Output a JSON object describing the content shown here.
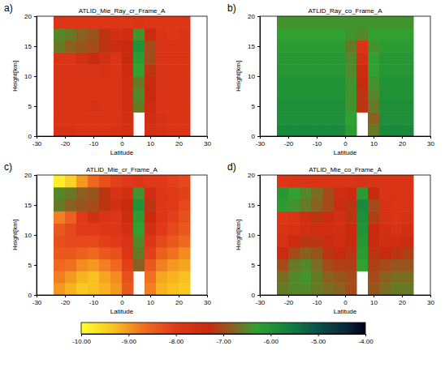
{
  "chart_data": [
    {
      "type": "heatmap",
      "panel_label": "a)",
      "title": "ATLID_Mie_Ray_cr_Frame_A",
      "xlabel": "Latitude",
      "ylabel": "Height[km]",
      "xlim": [
        -30,
        30
      ],
      "ylim": [
        0,
        20
      ],
      "xticks": [
        -30,
        -20,
        -10,
        0,
        10,
        20,
        30
      ],
      "yticks": [
        0,
        5,
        10,
        15,
        20
      ],
      "x": [
        -22,
        -18,
        -14,
        -10,
        -6,
        -2,
        2,
        6,
        10,
        14,
        18,
        22
      ],
      "y": [
        1,
        3,
        5,
        7,
        9,
        11,
        13,
        15,
        17,
        19
      ],
      "z": [
        [
          -7.7,
          -7.7,
          -7.8,
          -7.8,
          -7.8,
          -7.7,
          -7.6,
          null,
          -7.6,
          -7.7,
          -7.8,
          -7.8
        ],
        [
          -7.8,
          -7.8,
          -7.8,
          -7.8,
          -7.8,
          -7.8,
          -7.6,
          null,
          -7.5,
          -7.7,
          -7.8,
          -7.8
        ],
        [
          -7.8,
          -7.8,
          -7.8,
          -7.7,
          -7.8,
          -7.8,
          -7.5,
          -6.6,
          -7.4,
          -7.8,
          -7.8,
          -7.8
        ],
        [
          -7.8,
          -7.8,
          -7.8,
          -7.8,
          -7.8,
          -7.8,
          -7.5,
          -6.5,
          -7.3,
          -7.8,
          -7.8,
          -7.8
        ],
        [
          -7.8,
          -7.8,
          -7.8,
          -7.8,
          -7.8,
          -7.8,
          -7.5,
          -6.6,
          -7.3,
          -7.8,
          -7.8,
          -7.8
        ],
        [
          -7.8,
          -7.8,
          -7.8,
          -7.8,
          -7.7,
          -7.8,
          -7.4,
          -6.3,
          -7.2,
          -7.8,
          -7.8,
          -7.8
        ],
        [
          -7.8,
          -7.8,
          -7.6,
          -7.4,
          -7.6,
          -7.8,
          -7.3,
          -6.2,
          -7.0,
          -7.8,
          -7.8,
          -7.8
        ],
        [
          -6.6,
          -6.8,
          -6.9,
          -7.0,
          -7.2,
          -7.4,
          -7.3,
          -6.0,
          -7.0,
          -7.8,
          -7.8,
          -7.8
        ],
        [
          -6.5,
          -6.6,
          -6.8,
          -6.9,
          -7.2,
          -7.6,
          -7.5,
          -6.4,
          -7.4,
          -7.8,
          -7.9,
          -7.8
        ],
        [
          -7.9,
          -7.9,
          -7.9,
          -7.9,
          -7.9,
          -7.9,
          -7.9,
          -7.8,
          -7.9,
          -7.9,
          -7.9,
          -7.9
        ]
      ]
    },
    {
      "type": "heatmap",
      "panel_label": "b)",
      "title": "ATLID_Ray_co_Frame_A",
      "xlabel": "Latitude",
      "ylabel": "Height[km]",
      "xlim": [
        -30,
        30
      ],
      "ylim": [
        0,
        20
      ],
      "xticks": [
        -30,
        -20,
        -10,
        0,
        10,
        20,
        30
      ],
      "yticks": [
        0,
        5,
        10,
        15,
        20
      ],
      "x": [
        -22,
        -18,
        -14,
        -10,
        -6,
        -2,
        2,
        6,
        10,
        14,
        18,
        22
      ],
      "y": [
        1,
        3,
        5,
        7,
        9,
        11,
        13,
        15,
        17,
        19
      ],
      "z": [
        [
          -5.8,
          -5.8,
          -5.8,
          -5.8,
          -5.8,
          -5.8,
          -6.2,
          null,
          -6.6,
          -5.8,
          -5.8,
          -5.8
        ],
        [
          -5.9,
          -5.9,
          -5.9,
          -5.9,
          -5.9,
          -5.9,
          -6.3,
          null,
          -6.8,
          -5.9,
          -5.9,
          -5.9
        ],
        [
          -5.9,
          -5.9,
          -5.9,
          -5.9,
          -5.9,
          -5.9,
          -6.4,
          -7.2,
          -6.6,
          -5.9,
          -5.9,
          -5.9
        ],
        [
          -6.0,
          -6.0,
          -6.0,
          -6.0,
          -6.0,
          -6.0,
          -6.4,
          -7.2,
          -6.5,
          -6.0,
          -6.0,
          -6.0
        ],
        [
          -6.0,
          -6.0,
          -6.0,
          -6.0,
          -6.0,
          -6.0,
          -6.4,
          -7.3,
          -6.4,
          -6.0,
          -6.0,
          -6.0
        ],
        [
          -6.1,
          -6.1,
          -6.1,
          -6.1,
          -6.1,
          -6.1,
          -6.5,
          -7.4,
          -6.3,
          -6.1,
          -6.1,
          -6.1
        ],
        [
          -6.1,
          -6.1,
          -6.1,
          -6.1,
          -6.1,
          -6.1,
          -6.5,
          -7.6,
          -6.3,
          -6.1,
          -6.1,
          -6.1
        ],
        [
          -6.2,
          -6.2,
          -6.2,
          -6.2,
          -6.2,
          -6.2,
          -6.6,
          -7.8,
          -6.4,
          -6.2,
          -6.2,
          -6.2
        ],
        [
          -6.3,
          -6.3,
          -6.3,
          -6.3,
          -6.3,
          -6.3,
          -6.4,
          -6.5,
          -6.3,
          -6.3,
          -6.3,
          -6.3
        ],
        [
          -6.4,
          -6.4,
          -6.4,
          -6.4,
          -6.4,
          -6.4,
          -6.4,
          -6.4,
          -6.4,
          -6.4,
          -6.4,
          -6.4
        ]
      ]
    },
    {
      "type": "heatmap",
      "panel_label": "c)",
      "title": "ATLID_Mie_cr_Frame_A",
      "xlabel": "Latitude",
      "ylabel": "Height[km]",
      "xlim": [
        -30,
        30
      ],
      "ylim": [
        0,
        20
      ],
      "xticks": [
        -30,
        -20,
        -10,
        0,
        10,
        20,
        30
      ],
      "yticks": [
        0,
        5,
        10,
        15,
        20
      ],
      "x": [
        -22,
        -18,
        -14,
        -10,
        -6,
        -2,
        2,
        6,
        10,
        14,
        18,
        22
      ],
      "y": [
        1,
        3,
        5,
        7,
        9,
        11,
        13,
        15,
        17,
        19
      ],
      "z": [
        [
          -9.0,
          -9.2,
          -9.4,
          -9.3,
          -9.2,
          -9.0,
          -8.4,
          null,
          -8.8,
          -9.2,
          -9.3,
          -9.4
        ],
        [
          -8.8,
          -9.0,
          -9.2,
          -9.3,
          -9.1,
          -8.9,
          -8.3,
          null,
          -8.7,
          -9.1,
          -9.2,
          -9.3
        ],
        [
          -8.6,
          -8.7,
          -8.9,
          -9.0,
          -8.8,
          -8.6,
          -8.1,
          -6.8,
          -8.4,
          -8.8,
          -9.0,
          -9.1
        ],
        [
          -8.4,
          -8.4,
          -8.5,
          -8.6,
          -8.4,
          -8.3,
          -7.9,
          -6.6,
          -8.1,
          -8.5,
          -8.7,
          -8.9
        ],
        [
          -8.3,
          -8.2,
          -8.2,
          -8.2,
          -8.1,
          -8.0,
          -7.8,
          -6.5,
          -7.9,
          -8.2,
          -8.4,
          -8.6
        ],
        [
          -8.4,
          -8.2,
          -8.0,
          -8.0,
          -7.9,
          -7.9,
          -7.6,
          -6.3,
          -7.6,
          -8.0,
          -8.2,
          -8.4
        ],
        [
          -8.8,
          -8.5,
          -8.0,
          -7.6,
          -7.8,
          -7.9,
          -7.4,
          -6.2,
          -7.3,
          -7.9,
          -8.1,
          -8.3
        ],
        [
          -6.6,
          -6.8,
          -6.9,
          -7.0,
          -7.2,
          -7.6,
          -7.3,
          -6.0,
          -7.2,
          -7.9,
          -8.0,
          -8.2
        ],
        [
          -6.5,
          -6.6,
          -6.8,
          -6.9,
          -7.2,
          -7.7,
          -7.6,
          -6.4,
          -7.5,
          -7.9,
          -8.0,
          -8.1
        ],
        [
          -9.8,
          -9.5,
          -9.0,
          -8.6,
          -8.3,
          -8.1,
          -8.0,
          -7.9,
          -8.0,
          -8.0,
          -8.1,
          -8.2
        ]
      ]
    },
    {
      "type": "heatmap",
      "panel_label": "d)",
      "title": "ATLID_Mie_co_Frame_A",
      "xlabel": "Latitude",
      "ylabel": "Height[km]",
      "xlim": [
        -30,
        30
      ],
      "ylim": [
        0,
        20
      ],
      "xticks": [
        -30,
        -20,
        -10,
        0,
        10,
        20,
        30
      ],
      "yticks": [
        0,
        5,
        10,
        15,
        20
      ],
      "x": [
        -22,
        -18,
        -14,
        -10,
        -6,
        -2,
        2,
        6,
        10,
        14,
        18,
        22
      ],
      "y": [
        1,
        3,
        5,
        7,
        9,
        11,
        13,
        15,
        17,
        19
      ],
      "z": [
        [
          -6.6,
          -6.5,
          -6.5,
          -6.6,
          -6.7,
          -6.8,
          -7.0,
          null,
          -6.9,
          -6.7,
          -6.6,
          -6.6
        ],
        [
          -6.7,
          -6.5,
          -6.4,
          -6.6,
          -6.8,
          -6.9,
          -7.0,
          null,
          -7.0,
          -6.8,
          -6.7,
          -6.7
        ],
        [
          -7.0,
          -6.6,
          -6.5,
          -6.7,
          -7.0,
          -7.1,
          -7.1,
          -6.3,
          -7.1,
          -7.0,
          -6.9,
          -6.9
        ],
        [
          -7.4,
          -7.0,
          -6.8,
          -6.9,
          -7.2,
          -7.3,
          -7.2,
          -6.2,
          -7.2,
          -7.3,
          -7.2,
          -7.1
        ],
        [
          -7.7,
          -7.4,
          -7.2,
          -7.2,
          -7.4,
          -7.5,
          -7.3,
          -6.1,
          -7.3,
          -7.5,
          -7.5,
          -7.4
        ],
        [
          -7.8,
          -7.7,
          -7.6,
          -7.5,
          -7.5,
          -7.6,
          -7.3,
          -6.0,
          -7.3,
          -7.6,
          -7.7,
          -7.6
        ],
        [
          -7.9,
          -7.8,
          -7.5,
          -7.2,
          -7.4,
          -7.6,
          -7.2,
          -5.9,
          -7.1,
          -7.7,
          -7.8,
          -7.7
        ],
        [
          -6.2,
          -6.4,
          -6.6,
          -6.8,
          -7.0,
          -7.4,
          -7.2,
          -5.8,
          -7.0,
          -7.7,
          -7.8,
          -7.8
        ],
        [
          -6.1,
          -6.3,
          -6.5,
          -6.7,
          -7.0,
          -7.5,
          -7.4,
          -6.2,
          -7.3,
          -7.8,
          -7.8,
          -7.8
        ],
        [
          -7.9,
          -7.8,
          -7.8,
          -7.8,
          -7.8,
          -7.8,
          -7.8,
          -7.7,
          -7.8,
          -7.8,
          -7.8,
          -7.8
        ]
      ]
    }
  ],
  "colorbar": {
    "range": [
      -10,
      -4
    ],
    "ticks": [
      {
        "value": -10,
        "label": "-10.00"
      },
      {
        "value": -9,
        "label": "-9.00"
      },
      {
        "value": -8,
        "label": "-8.00"
      },
      {
        "value": -7,
        "label": "-7.00"
      },
      {
        "value": -6,
        "label": "-6.00"
      },
      {
        "value": -5,
        "label": "-5.00"
      },
      {
        "value": -4,
        "label": "-4.00"
      }
    ]
  }
}
